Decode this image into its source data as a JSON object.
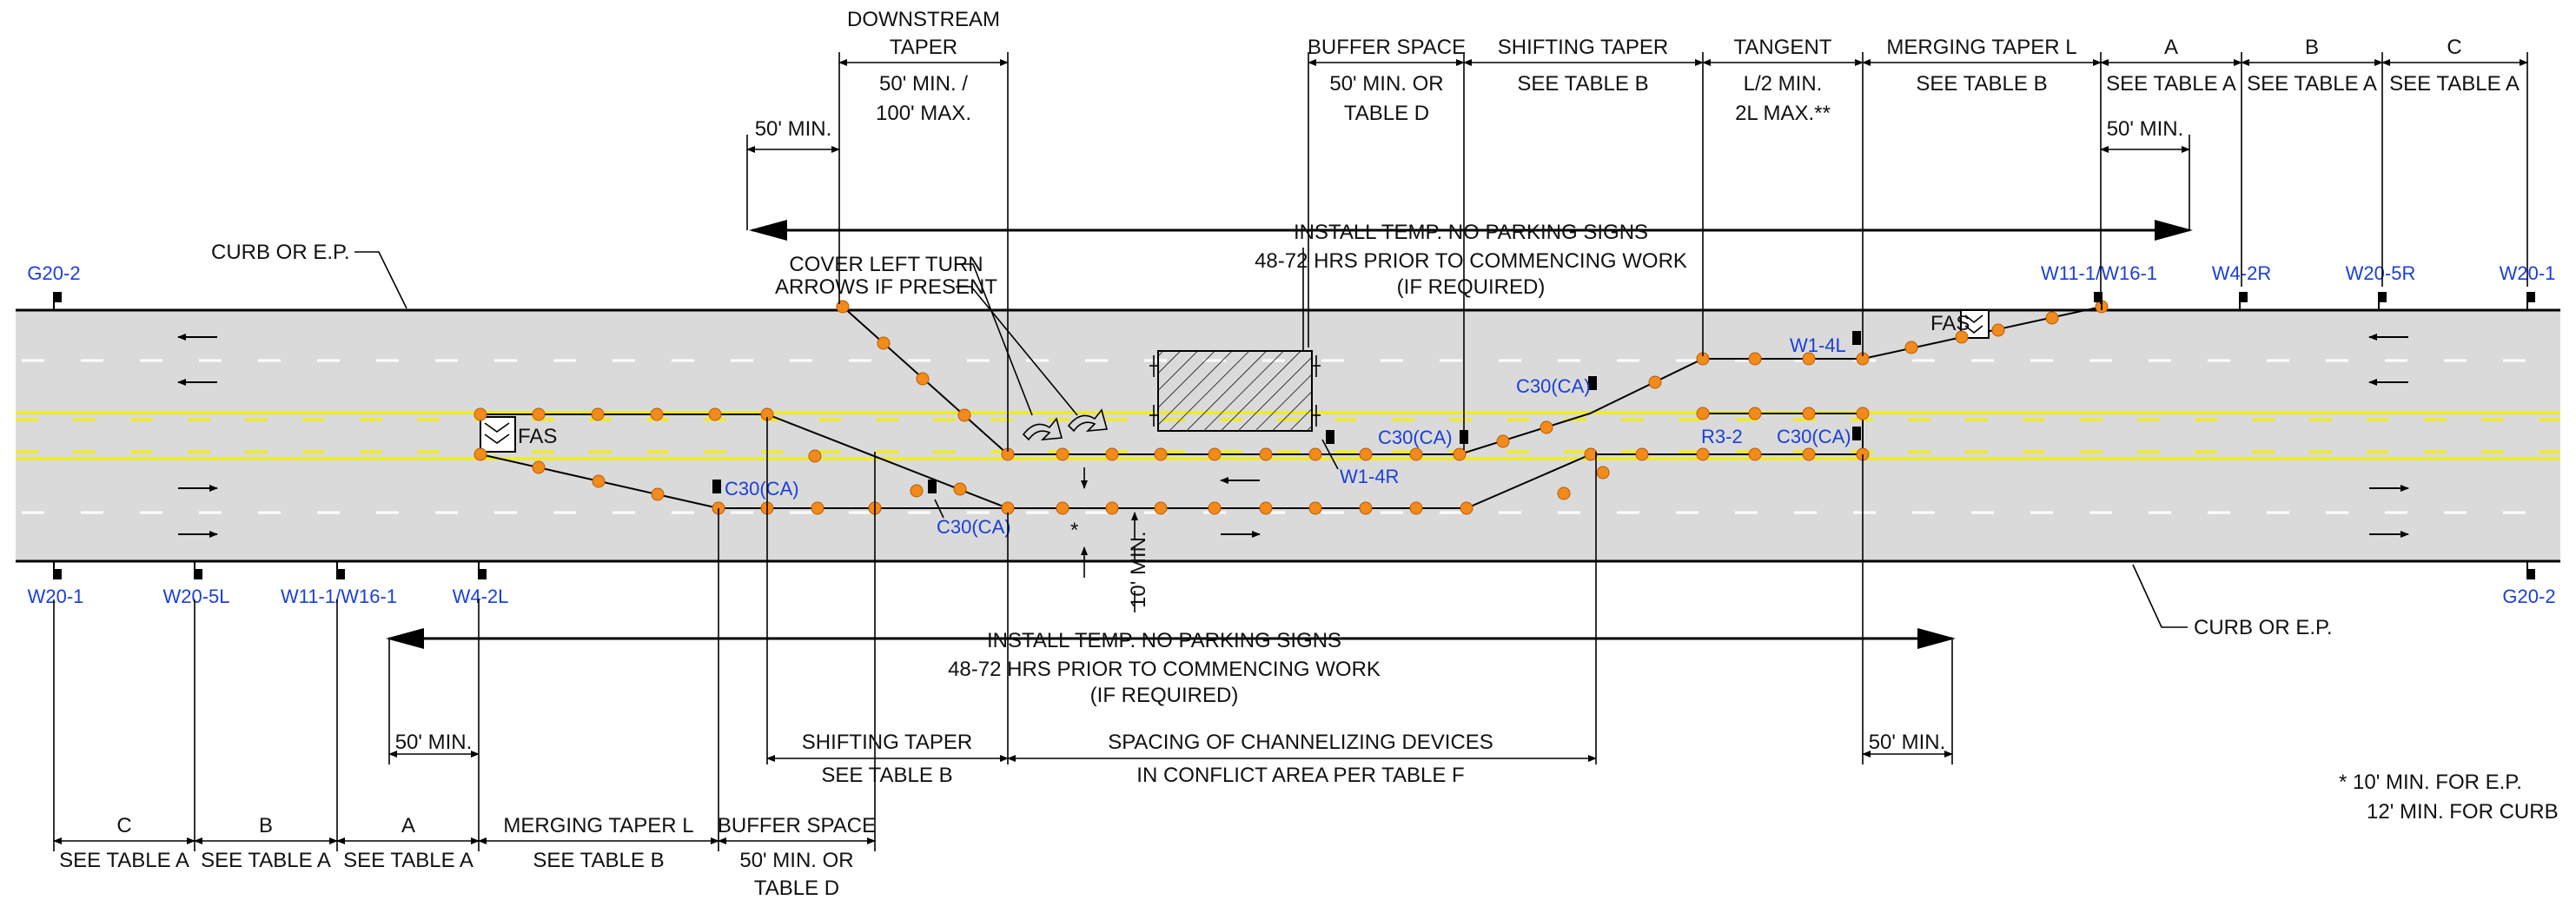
{
  "colors": {
    "roadway": "#dadada",
    "edge": "#000000",
    "yellow_line": "#f2ef00",
    "lane_marking": "#ffffff",
    "device": "#f28a1c",
    "sign_label": "#1a3fd8",
    "text": "#111111"
  },
  "road_labels": {
    "curb_top": "CURB OR E.P.",
    "curb_bottom": "CURB OR E.P."
  },
  "top_dims": {
    "downstream_taper_title": [
      "DOWNSTREAM",
      "TAPER"
    ],
    "downstream_taper_value": [
      "50' MIN. /",
      "100' MAX."
    ],
    "fifty_min_left": "50' MIN.",
    "buffer_title": "BUFFER SPACE",
    "buffer_value": [
      "50' MIN. OR",
      "TABLE D"
    ],
    "shifting_title": "SHIFTING TAPER",
    "shifting_value": "SEE TABLE B",
    "tangent_title": "TANGENT",
    "tangent_value": [
      "L/2 MIN.",
      "2L MAX.**"
    ],
    "merging_title": "MERGING TAPER L",
    "merging_value": "SEE TABLE B",
    "a_title": "A",
    "a_value": "SEE TABLE A",
    "b_title": "B",
    "b_value": "SEE TABLE A",
    "c_title": "C",
    "c_value": "SEE TABLE A",
    "fifty_min_a": "50' MIN."
  },
  "no_parking_top": [
    "INSTALL TEMP. NO PARKING SIGNS",
    "48-72 HRS PRIOR TO COMMENCING WORK",
    "(IF REQUIRED)"
  ],
  "no_parking_bottom": [
    "INSTALL TEMP. NO PARKING SIGNS",
    "48-72 HRS PRIOR TO COMMENCING WORK",
    "(IF REQUIRED)"
  ],
  "cover_note": [
    "COVER LEFT TURN",
    "ARROWS IF PRESENT"
  ],
  "fas": [
    "FAS",
    "FAS"
  ],
  "signs": {
    "top": [
      "G20-2",
      "W11-1/W16-1",
      "W4-2R",
      "W20-5R",
      "W20-1"
    ],
    "bottom": [
      "W20-1",
      "W20-5L",
      "W11-1/W16-1",
      "W4-2L",
      "G20-2"
    ],
    "in_road": [
      "C30(CA)",
      "C30(CA)",
      "C30(CA)",
      "W1-4R",
      "C30(CA)",
      "W1-4L",
      "R3-2",
      "C30(CA)"
    ]
  },
  "ten_min": "10' MIN.",
  "asterisk": "*",
  "bottom_dims": {
    "fifty_min_left": "50' MIN.",
    "fifty_min_right": "50' MIN.",
    "c_title": "C",
    "c_value": "SEE TABLE A",
    "b_title": "B",
    "b_value": "SEE TABLE A",
    "a_title": "A",
    "a_value": "SEE TABLE A",
    "merging_title": "MERGING TAPER L",
    "merging_value": "SEE TABLE B",
    "buffer_title": "BUFFER SPACE",
    "buffer_value": [
      "50' MIN. OR",
      "TABLE D"
    ],
    "shifting_title": "SHIFTING TAPER",
    "shifting_value": "SEE TABLE B",
    "spacing_title": "SPACING OF CHANNELIZING DEVICES",
    "spacing_value": "IN CONFLICT AREA PER TABLE F"
  },
  "footnote": [
    "*  10' MIN. FOR E.P.",
    "12' MIN. FOR CURB"
  ]
}
